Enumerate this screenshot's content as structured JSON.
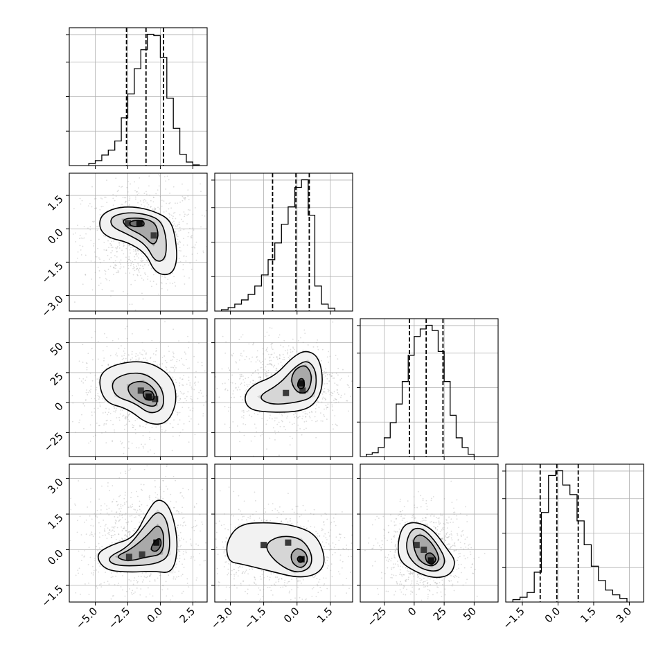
{
  "chart_data": {
    "type": "corner",
    "grid": true,
    "colors": {
      "ink": "#000000",
      "grid": "#b0b0b0",
      "points": "#9a9a9a"
    },
    "parameters": [
      {
        "range": [
          -7.0,
          3.6
        ],
        "ticks": [
          -5.0,
          -2.5,
          0.0,
          2.5
        ],
        "tick_labels": [
          "−5.0",
          "−2.5",
          "0.0",
          "2.5"
        ],
        "quantiles": [
          -2.6,
          -1.1,
          0.25
        ],
        "histogram": {
          "edges": [
            -5.5,
            -5.0,
            -4.5,
            -4.0,
            -3.5,
            -3.0,
            -2.5,
            -2.0,
            -1.5,
            -1.0,
            -0.5,
            0.0,
            0.5,
            1.0,
            1.5,
            2.0,
            2.5,
            3.0
          ],
          "counts": [
            3,
            7,
            15,
            22,
            35,
            68,
            102,
            138,
            165,
            187,
            185,
            154,
            96,
            53,
            16,
            5,
            1
          ]
        }
      },
      {
        "range": [
          -3.7,
          2.5
        ],
        "ticks": [
          -3.0,
          -1.5,
          0.0,
          1.5
        ],
        "tick_labels": [
          "−3.0",
          "−1.5",
          "0.0",
          "1.5"
        ],
        "quantiles": [
          -1.1,
          -0.05,
          0.55
        ],
        "histogram": {
          "edges": [
            -3.4,
            -3.1,
            -2.8,
            -2.5,
            -2.2,
            -1.9,
            -1.6,
            -1.3,
            -1.0,
            -0.7,
            -0.4,
            -0.1,
            0.2,
            0.5,
            0.8,
            1.1,
            1.4,
            1.7
          ],
          "counts": [
            2,
            5,
            10,
            16,
            24,
            36,
            52,
            74,
            98,
            125,
            150,
            178,
            189,
            138,
            36,
            10,
            4
          ]
        }
      },
      {
        "range": [
          -45,
          70
        ],
        "ticks": [
          -25,
          0,
          25,
          50
        ],
        "tick_labels": [
          "−25",
          "0",
          "25",
          "50"
        ],
        "quantiles": [
          -4,
          10,
          24
        ],
        "histogram": {
          "edges": [
            -40,
            -35,
            -30,
            -25,
            -20,
            -15,
            -10,
            -5,
            0,
            5,
            10,
            15,
            20,
            25,
            30,
            35,
            40,
            45,
            50
          ],
          "counts": [
            3,
            5,
            12,
            25,
            45,
            70,
            100,
            135,
            160,
            170,
            175,
            168,
            140,
            100,
            55,
            25,
            12,
            3
          ]
        }
      },
      {
        "range": [
          -2.2,
          3.6
        ],
        "ticks": [
          -1.5,
          0.0,
          1.5,
          3.0
        ],
        "tick_labels": [
          "−1.5",
          "0.0",
          "1.5",
          "3.0"
        ],
        "quantiles": [
          -0.75,
          -0.05,
          0.85
        ],
        "histogram": {
          "edges": [
            -1.9,
            -1.6,
            -1.3,
            -1.0,
            -0.7,
            -0.4,
            -0.1,
            0.2,
            0.5,
            0.8,
            1.1,
            1.4,
            1.7,
            2.0,
            2.3,
            2.6,
            2.9
          ],
          "counts": [
            2,
            4,
            8,
            25,
            75,
            106,
            110,
            98,
            90,
            68,
            48,
            30,
            18,
            10,
            6,
            3
          ]
        }
      }
    ],
    "pairs": [
      {
        "row": 1,
        "col": 0,
        "contours": [
          [
            [
              -4.6,
              0.6
            ],
            [
              -3.5,
              0.95
            ],
            [
              -2.0,
              1.0
            ],
            [
              -0.5,
              0.8
            ],
            [
              0.8,
              0.4
            ],
            [
              1.2,
              -0.5
            ],
            [
              1.3,
              -1.5
            ],
            [
              0.8,
              -2.1
            ],
            [
              -0.4,
              -2.0
            ],
            [
              -1.1,
              -1.1
            ],
            [
              -2.5,
              -0.6
            ],
            [
              -4.0,
              -0.4
            ],
            [
              -4.7,
              0.0
            ]
          ],
          [
            [
              -3.8,
              0.55
            ],
            [
              -2.5,
              0.75
            ],
            [
              -1.0,
              0.65
            ],
            [
              0.1,
              0.35
            ],
            [
              0.5,
              -0.5
            ],
            [
              0.4,
              -1.4
            ],
            [
              -0.4,
              -1.5
            ],
            [
              -1.1,
              -0.7
            ],
            [
              -2.5,
              -0.25
            ],
            [
              -3.8,
              0.1
            ]
          ],
          [
            [
              -3.0,
              0.45
            ],
            [
              -1.5,
              0.5
            ],
            [
              -0.4,
              0.3
            ],
            [
              -0.1,
              -0.3
            ],
            [
              -0.5,
              -0.8
            ],
            [
              -1.3,
              -0.3
            ],
            [
              -2.6,
              0.05
            ]
          ],
          [
            [
              -2.4,
              0.35
            ],
            [
              -1.3,
              0.4
            ],
            [
              -1.2,
              0.1
            ],
            [
              -2.3,
              0.1
            ]
          ]
        ],
        "peaks": [
          [
            -1.6,
            0.25
          ],
          [
            -0.5,
            -0.3
          ],
          [
            -2.5,
            0.25
          ]
        ]
      },
      {
        "row": 2,
        "col": 0,
        "contours": [
          [
            [
              -4.8,
              20
            ],
            [
              -4.0,
              30
            ],
            [
              -2.0,
              35
            ],
            [
              -0.4,
              32
            ],
            [
              1.0,
              20
            ],
            [
              1.3,
              0
            ],
            [
              0.5,
              -18
            ],
            [
              -1.0,
              -18
            ],
            [
              -2.5,
              -5
            ],
            [
              -4.3,
              0
            ]
          ],
          [
            [
              -3.8,
              18
            ],
            [
              -2.5,
              25
            ],
            [
              -1.0,
              24
            ],
            [
              0.2,
              12
            ],
            [
              0.3,
              -5
            ],
            [
              -0.8,
              -10
            ],
            [
              -2.0,
              0
            ],
            [
              -3.5,
              5
            ]
          ],
          [
            [
              -2.6,
              15
            ],
            [
              -1.3,
              19
            ],
            [
              -0.3,
              10
            ],
            [
              -0.2,
              -3
            ],
            [
              -1.0,
              -3
            ],
            [
              -2.3,
              5
            ]
          ],
          [
            [
              -1.4,
              10
            ],
            [
              -0.6,
              10
            ],
            [
              -0.4,
              2
            ],
            [
              -1.2,
              2
            ]
          ]
        ],
        "peaks": [
          [
            -0.9,
            5
          ],
          [
            -1.5,
            10
          ],
          [
            -0.4,
            3
          ]
        ]
      },
      {
        "row": 2,
        "col": 1,
        "contours": [
          [
            [
              -2.4,
              5
            ],
            [
              -2.0,
              15
            ],
            [
              -1.0,
              22
            ],
            [
              -0.2,
              38
            ],
            [
              0.4,
              44
            ],
            [
              1.0,
              38
            ],
            [
              1.2,
              15
            ],
            [
              0.8,
              -2
            ],
            [
              0.0,
              -8
            ],
            [
              -1.5,
              -8
            ],
            [
              -2.2,
              -5
            ]
          ],
          [
            [
              -1.8,
              5
            ],
            [
              -0.8,
              15
            ],
            [
              -0.1,
              30
            ],
            [
              0.5,
              36
            ],
            [
              0.9,
              25
            ],
            [
              0.8,
              5
            ],
            [
              0.0,
              0
            ],
            [
              -1.2,
              -2
            ]
          ],
          [
            [
              -0.3,
              18
            ],
            [
              -0.1,
              28
            ],
            [
              0.4,
              32
            ],
            [
              0.7,
              22
            ],
            [
              0.5,
              8
            ],
            [
              0.0,
              8
            ]
          ],
          [
            [
              0.0,
              14
            ],
            [
              0.1,
              20
            ],
            [
              0.3,
              20
            ],
            [
              0.35,
              13
            ],
            [
              0.15,
              11
            ]
          ]
        ],
        "peaks": [
          [
            0.2,
            16
          ],
          [
            0.25,
            10
          ],
          [
            -0.5,
            8
          ]
        ]
      },
      {
        "row": 3,
        "col": 0,
        "contours": [
          [
            [
              -5.0,
              -0.2
            ],
            [
              -3.8,
              0.2
            ],
            [
              -2.0,
              0.5
            ],
            [
              -1.0,
              1.6
            ],
            [
              -0.2,
              2.2
            ],
            [
              0.8,
              1.8
            ],
            [
              1.4,
              0.3
            ],
            [
              1.0,
              -1.0
            ],
            [
              -0.5,
              -0.9
            ],
            [
              -2.5,
              -0.95
            ],
            [
              -4.3,
              -0.85
            ]
          ],
          [
            [
              -4.0,
              -0.3
            ],
            [
              -2.5,
              0.1
            ],
            [
              -1.2,
              1.0
            ],
            [
              -0.2,
              1.7
            ],
            [
              0.6,
              1.2
            ],
            [
              0.8,
              -0.2
            ],
            [
              -0.2,
              -0.6
            ],
            [
              -2.5,
              -0.7
            ],
            [
              -3.8,
              -0.6
            ]
          ],
          [
            [
              -3.5,
              -0.3
            ],
            [
              -2.3,
              0.0
            ],
            [
              -1.0,
              0.6
            ],
            [
              -0.2,
              1.1
            ],
            [
              0.3,
              0.7
            ],
            [
              0.2,
              -0.2
            ],
            [
              -1.0,
              -0.3
            ],
            [
              -2.5,
              -0.5
            ]
          ],
          [
            [
              -0.8,
              0.0
            ],
            [
              -0.4,
              0.4
            ],
            [
              0.0,
              0.5
            ],
            [
              0.1,
              0.2
            ],
            [
              -0.3,
              -0.1
            ]
          ]
        ],
        "peaks": [
          [
            -0.3,
            0.3
          ],
          [
            -1.4,
            -0.2
          ],
          [
            -2.4,
            -0.3
          ]
        ]
      },
      {
        "row": 3,
        "col": 1,
        "contours": [
          [
            [
              -3.2,
              0.3
            ],
            [
              -2.6,
              1.1
            ],
            [
              -1.2,
              1.15
            ],
            [
              0.0,
              1.0
            ],
            [
              0.9,
              0.6
            ],
            [
              1.3,
              -0.4
            ],
            [
              1.0,
              -1.0
            ],
            [
              0.1,
              -1.2
            ],
            [
              -1.2,
              -0.9
            ],
            [
              -2.5,
              -0.6
            ],
            [
              -3.1,
              -0.5
            ]
          ],
          [
            [
              -1.5,
              0.2
            ],
            [
              -0.8,
              0.6
            ],
            [
              0.2,
              0.5
            ],
            [
              0.7,
              -0.2
            ],
            [
              0.6,
              -0.8
            ],
            [
              -0.1,
              -1.0
            ],
            [
              -1.0,
              -0.5
            ]
          ],
          [
            [
              -0.3,
              -0.2
            ],
            [
              0.0,
              0.1
            ],
            [
              0.4,
              -0.1
            ],
            [
              0.5,
              -0.5
            ],
            [
              0.2,
              -0.8
            ],
            [
              -0.2,
              -0.6
            ]
          ],
          [
            [
              0.0,
              -0.35
            ],
            [
              0.15,
              -0.25
            ],
            [
              0.3,
              -0.4
            ],
            [
              0.2,
              -0.55
            ],
            [
              0.05,
              -0.5
            ]
          ]
        ],
        "peaks": [
          [
            0.2,
            -0.4
          ],
          [
            -0.4,
            0.3
          ],
          [
            -1.5,
            0.2
          ]
        ]
      },
      {
        "row": 3,
        "col": 2,
        "contours": [
          [
            [
              -14,
              0.2
            ],
            [
              -10,
              1.0
            ],
            [
              0,
              1.2
            ],
            [
              15,
              0.9
            ],
            [
              28,
              0.0
            ],
            [
              35,
              -0.5
            ],
            [
              30,
              -1.1
            ],
            [
              15,
              -1.2
            ],
            [
              0,
              -0.9
            ],
            [
              -12,
              -0.5
            ]
          ],
          [
            [
              -7,
              0.3
            ],
            [
              -2,
              0.9
            ],
            [
              8,
              0.9
            ],
            [
              20,
              0.2
            ],
            [
              27,
              -0.5
            ],
            [
              20,
              -0.95
            ],
            [
              5,
              -0.8
            ],
            [
              -5,
              -0.3
            ]
          ],
          [
            [
              -2,
              0.4
            ],
            [
              5,
              0.7
            ],
            [
              15,
              0.3
            ],
            [
              22,
              -0.4
            ],
            [
              15,
              -0.75
            ],
            [
              3,
              -0.45
            ]
          ],
          [
            [
              9,
              -0.2
            ],
            [
              14,
              -0.1
            ],
            [
              19,
              -0.4
            ],
            [
              15,
              -0.65
            ],
            [
              10,
              -0.5
            ]
          ]
        ],
        "peaks": [
          [
            14,
            -0.45
          ],
          [
            2,
            0.2
          ],
          [
            8,
            0.0
          ]
        ]
      }
    ]
  }
}
